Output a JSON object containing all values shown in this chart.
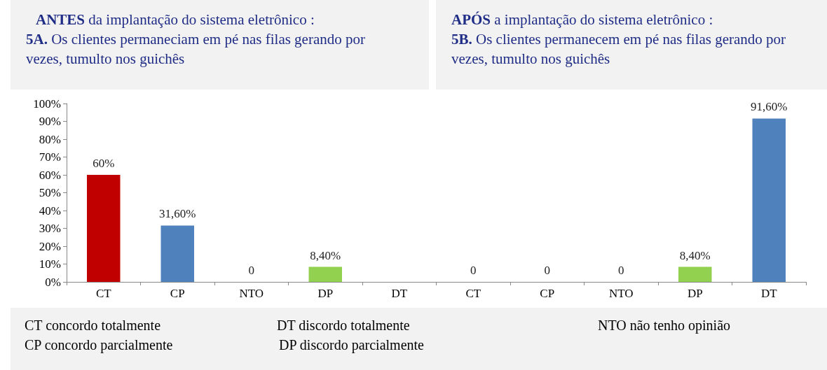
{
  "chart_data": {
    "type": "bar",
    "categories": [
      "CT",
      "CP",
      "NTO",
      "DP",
      "DT",
      "CT",
      "CP",
      "NTO",
      "DP",
      "DT"
    ],
    "values": [
      60,
      31.6,
      0,
      8.4,
      null,
      0,
      0,
      0,
      8.4,
      91.6
    ],
    "colors": [
      "#c00000",
      "#4f81bd",
      "#4f81bd",
      "#92d050",
      "#4f81bd",
      "#4f81bd",
      "#4f81bd",
      "#4f81bd",
      "#92d050",
      "#4f81bd"
    ],
    "value_labels": [
      "60%",
      "31,60%",
      "0",
      "8,40%",
      null,
      "0",
      "0",
      "0",
      "8,40%",
      "91,60%"
    ],
    "ylim": [
      0,
      100
    ],
    "yticks": [
      {
        "value": 0,
        "label": "0%"
      },
      {
        "value": 10,
        "label": "10%"
      },
      {
        "value": 20,
        "label": "20%"
      },
      {
        "value": 30,
        "label": "30%"
      },
      {
        "value": 40,
        "label": "40%"
      },
      {
        "value": 50,
        "label": "50%"
      },
      {
        "value": 60,
        "label": "60%"
      },
      {
        "value": 70,
        "label": "70%"
      },
      {
        "value": 80,
        "label": "80%"
      },
      {
        "value": 90,
        "label": "90%"
      },
      {
        "value": 100,
        "label": "100%"
      }
    ],
    "grid": false,
    "annotations": [
      "ANTES da implantação do sistema eletrônico :",
      "5A. Os clientes permaneciam em pé nas filas gerando por vezes, tumulto nos guichês",
      "APÓS a implantação do sistema eletrônico :",
      "5B. Os clientes permanecem em pé nas filas gerando por vezes, tumulto nos guichês",
      "CT concordo totalmente",
      "DT discordo totalmente",
      "NTO não tenho opinião",
      "CP concordo parcialmente",
      "DP discordo parcialmente"
    ]
  }
}
